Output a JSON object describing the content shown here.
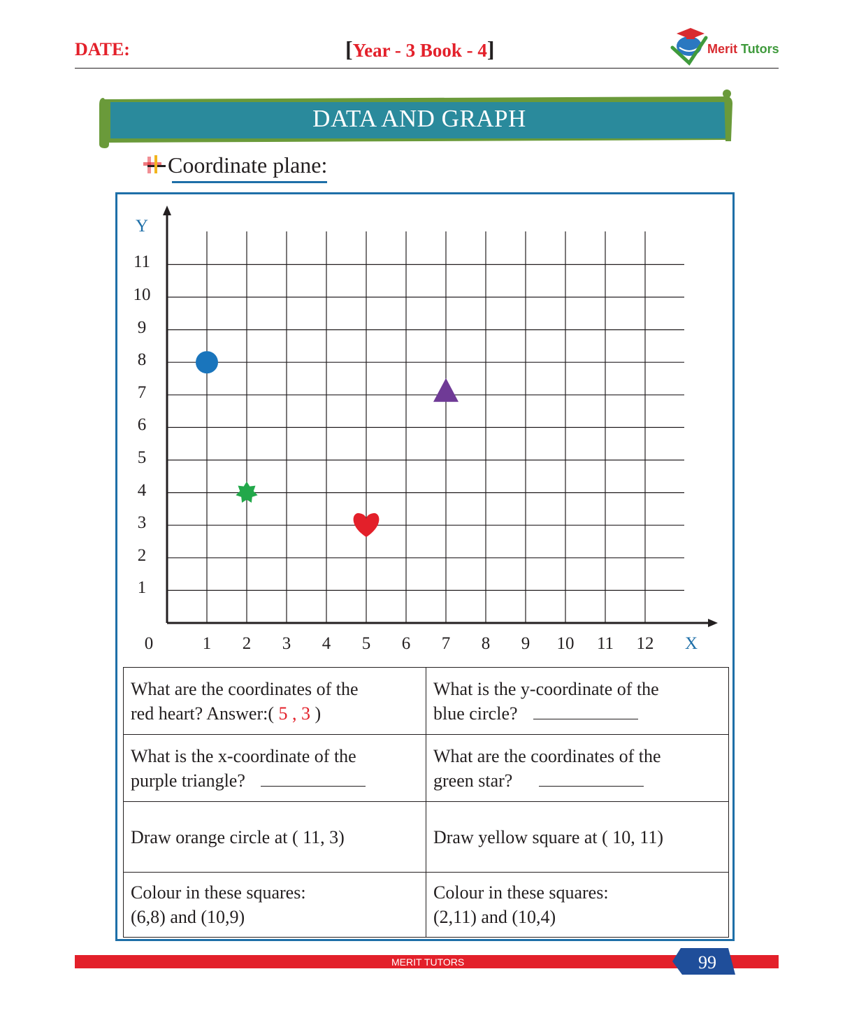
{
  "header": {
    "date_label": "DATE:",
    "bracket_open": "[",
    "book_label": "Year - 3 Book - 4",
    "bracket_close": "]",
    "logo_word1": "Merit",
    "logo_word2": "Tutors",
    "logo_icon": "graduation-cap-globe-icon"
  },
  "banner": {
    "title": "DATA AND GRAPH"
  },
  "section": {
    "title": "Coordinate plane:",
    "bullet_icon": "cross-bullet-icon"
  },
  "graph": {
    "y_axis_label": "Y",
    "x_axis_label": "X",
    "origin_label": "0",
    "x_ticks": [
      "1",
      "2",
      "3",
      "4",
      "5",
      "6",
      "7",
      "8",
      "9",
      "10",
      "11",
      "12"
    ],
    "y_ticks": [
      "1",
      "2",
      "3",
      "4",
      "5",
      "6",
      "7",
      "8",
      "9",
      "10",
      "11"
    ]
  },
  "chart_data": {
    "type": "scatter",
    "x_range": [
      0,
      12
    ],
    "y_range": [
      0,
      11
    ],
    "grid": true,
    "points": [
      {
        "shape": "circle",
        "color": "#1a75bc",
        "x": 1,
        "y": 8
      },
      {
        "shape": "star",
        "color": "#22a84a",
        "x": 2,
        "y": 4
      },
      {
        "shape": "heart",
        "color": "#e3202a",
        "x": 5,
        "y": 3
      },
      {
        "shape": "triangle",
        "color": "#6f3a96",
        "x": 7,
        "y": 7
      }
    ]
  },
  "questions": {
    "q1_line1": "What are the coordinates of the",
    "q1_line2": "red heart? Answer:(",
    "q1_x": "5",
    "q1_sep": ",",
    "q1_y": "3",
    "q1_close": ")",
    "q2_line1": "What is the y-coordinate of the",
    "q2_line2": "blue circle?",
    "q3_line1": "What is the x-coordinate of the",
    "q3_line2": "purple triangle?",
    "q4_line1": "What are the coordinates of the",
    "q4_line2": "green star?",
    "q5": "Draw orange circle at ( 11, 3)",
    "q6": "Draw yellow square at ( 10, 11)",
    "q7_line1": "Colour in these squares:",
    "q7_line2": "(6,8) and (10,9)",
    "q8_line1": "Colour in these squares:",
    "q8_line2": "(2,11) and (10,4)"
  },
  "footer": {
    "brand": "MERIT TUTORS",
    "page_number": "99"
  },
  "colors": {
    "accent_red": "#e3202a",
    "accent_blue": "#1e6fa8",
    "banner_teal": "#2a8a9c",
    "banner_green": "#6a9a3a"
  }
}
